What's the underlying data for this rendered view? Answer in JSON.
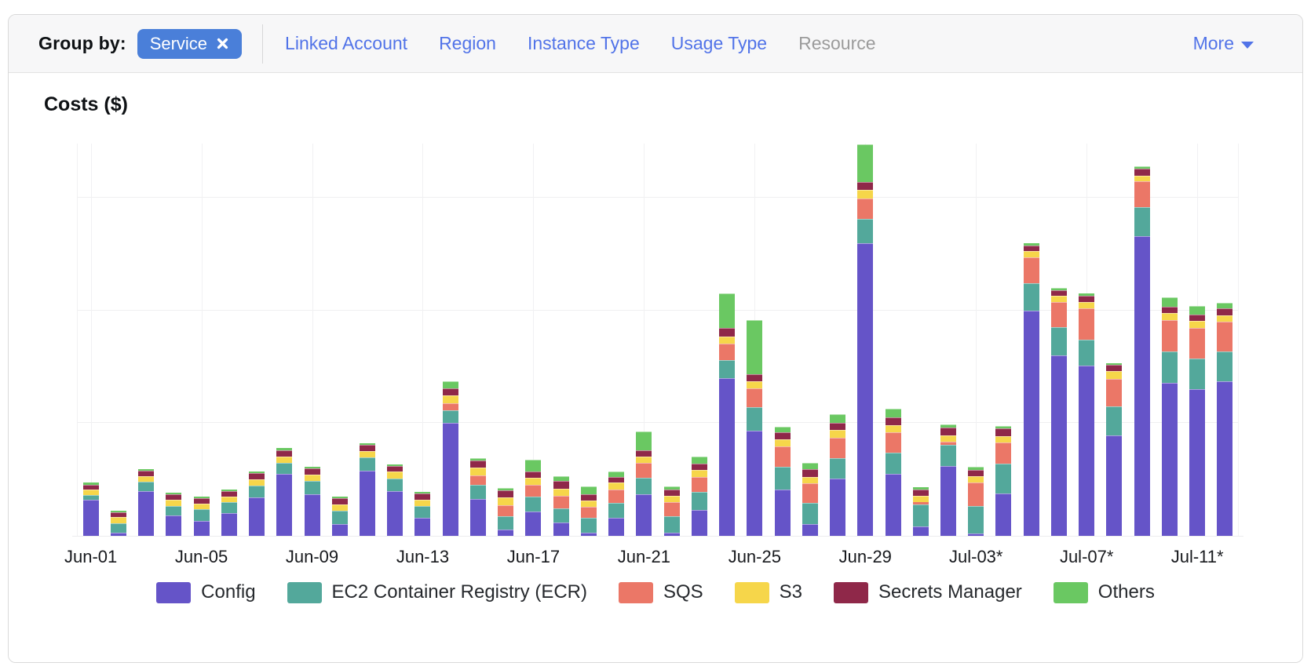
{
  "toolbar": {
    "group_by_label": "Group by:",
    "selected_chip": {
      "label": "Service"
    },
    "options": [
      {
        "label": "Linked Account",
        "enabled": true
      },
      {
        "label": "Region",
        "enabled": true
      },
      {
        "label": "Instance Type",
        "enabled": true
      },
      {
        "label": "Usage Type",
        "enabled": true
      },
      {
        "label": "Resource",
        "enabled": false
      }
    ],
    "more_label": "More"
  },
  "chart_data": {
    "type": "bar",
    "stacked": true,
    "title": "Costs ($)",
    "ylabel": "Costs ($)",
    "xlabel": "",
    "y_axis_tick_labels_visible": false,
    "value_unit": "relative units (1 = one unlabeled gridline interval)",
    "ylim": [
      0,
      3.48
    ],
    "y_gridlines": [
      1,
      2,
      3
    ],
    "x_tick_indices": [
      0,
      4,
      8,
      12,
      16,
      20,
      24,
      28,
      32,
      36,
      40
    ],
    "x_tick_labels": [
      "Jun-01",
      "Jun-05",
      "Jun-09",
      "Jun-13",
      "Jun-17",
      "Jun-21",
      "Jun-25",
      "Jun-29",
      "Jul-03*",
      "Jul-07*",
      "Jul-11*"
    ],
    "categories": [
      "Jun-01",
      "Jun-02",
      "Jun-03",
      "Jun-04",
      "Jun-05",
      "Jun-06",
      "Jun-07",
      "Jun-08",
      "Jun-09",
      "Jun-10",
      "Jun-11",
      "Jun-12",
      "Jun-13",
      "Jun-14",
      "Jun-15",
      "Jun-16",
      "Jun-17",
      "Jun-18",
      "Jun-19",
      "Jun-20",
      "Jun-21",
      "Jun-22",
      "Jun-23",
      "Jun-24",
      "Jun-25",
      "Jun-26",
      "Jun-27",
      "Jun-28",
      "Jun-29",
      "Jun-30",
      "Jul-01",
      "Jul-02",
      "Jul-03",
      "Jul-04",
      "Jul-05",
      "Jul-06",
      "Jul-07",
      "Jul-08",
      "Jul-09",
      "Jul-10",
      "Jul-11",
      "Jul-12"
    ],
    "legend_position": "bottom",
    "series": [
      {
        "name": "Config",
        "color": "#6554c8",
        "values": [
          0.32,
          0.026,
          0.4,
          0.18,
          0.135,
          0.2,
          0.34,
          0.55,
          0.37,
          0.107,
          0.58,
          0.4,
          0.158,
          1.0,
          0.33,
          0.056,
          0.218,
          0.116,
          0.03,
          0.158,
          0.367,
          0.026,
          0.228,
          1.4,
          0.936,
          0.413,
          0.102,
          0.506,
          2.597,
          0.553,
          0.086,
          0.62,
          0.023,
          0.379,
          2.0,
          1.598,
          1.51,
          0.894,
          2.657,
          1.359,
          1.303,
          1.373
        ]
      },
      {
        "name": "EC2 Container Registry (ECR)",
        "color": "#53a89b",
        "values": [
          0.04,
          0.088,
          0.077,
          0.088,
          0.1,
          0.1,
          0.107,
          0.098,
          0.12,
          0.116,
          0.114,
          0.11,
          0.107,
          0.116,
          0.123,
          0.116,
          0.132,
          0.13,
          0.128,
          0.135,
          0.146,
          0.146,
          0.162,
          0.163,
          0.204,
          0.2,
          0.19,
          0.186,
          0.216,
          0.186,
          0.193,
          0.186,
          0.244,
          0.26,
          0.244,
          0.256,
          0.232,
          0.256,
          0.26,
          0.279,
          0.272,
          0.26
        ]
      },
      {
        "name": "SQS",
        "color": "#eb7767",
        "values": [
          0,
          0,
          0,
          0,
          0,
          0,
          0,
          0,
          0,
          0,
          0,
          0,
          0,
          0.063,
          0.086,
          0.102,
          0.1,
          0.11,
          0.1,
          0.12,
          0.132,
          0.125,
          0.135,
          0.144,
          0.17,
          0.179,
          0.174,
          0.181,
          0.179,
          0.181,
          0.02,
          0.03,
          0.204,
          0.186,
          0.228,
          0.223,
          0.279,
          0.246,
          0.228,
          0.279,
          0.272,
          0.267
        ]
      },
      {
        "name": "S3",
        "color": "#f6d64a",
        "values": [
          0.05,
          0.051,
          0.051,
          0.051,
          0.051,
          0.047,
          0.051,
          0.053,
          0.053,
          0.053,
          0.056,
          0.06,
          0.056,
          0.065,
          0.063,
          0.065,
          0.063,
          0.065,
          0.058,
          0.06,
          0.06,
          0.06,
          0.058,
          0.065,
          0.063,
          0.063,
          0.058,
          0.065,
          0.077,
          0.065,
          0.054,
          0.056,
          0.056,
          0.058,
          0.051,
          0.051,
          0.051,
          0.063,
          0.051,
          0.06,
          0.06,
          0.058
        ]
      },
      {
        "name": "Secrets Manager",
        "color": "#8f2849",
        "values": [
          0.045,
          0.042,
          0.047,
          0.047,
          0.047,
          0.047,
          0.056,
          0.058,
          0.056,
          0.058,
          0.056,
          0.051,
          0.054,
          0.065,
          0.065,
          0.065,
          0.058,
          0.063,
          0.051,
          0.051,
          0.051,
          0.056,
          0.054,
          0.07,
          0.063,
          0.065,
          0.065,
          0.063,
          0.07,
          0.063,
          0.058,
          0.07,
          0.06,
          0.07,
          0.051,
          0.051,
          0.06,
          0.058,
          0.058,
          0.056,
          0.056,
          0.058
        ]
      },
      {
        "name": "Others",
        "color": "#6ac862",
        "values": [
          0.017,
          0.014,
          0.019,
          0.019,
          0.014,
          0.016,
          0.014,
          0.019,
          0.014,
          0.016,
          0.019,
          0.016,
          0.016,
          0.063,
          0.023,
          0.023,
          0.105,
          0.042,
          0.07,
          0.051,
          0.167,
          0.023,
          0.063,
          0.307,
          0.479,
          0.051,
          0.056,
          0.077,
          0.332,
          0.077,
          0.019,
          0.03,
          0.023,
          0.023,
          0.019,
          0.023,
          0.016,
          0.016,
          0.023,
          0.084,
          0.077,
          0.054
        ]
      }
    ]
  }
}
